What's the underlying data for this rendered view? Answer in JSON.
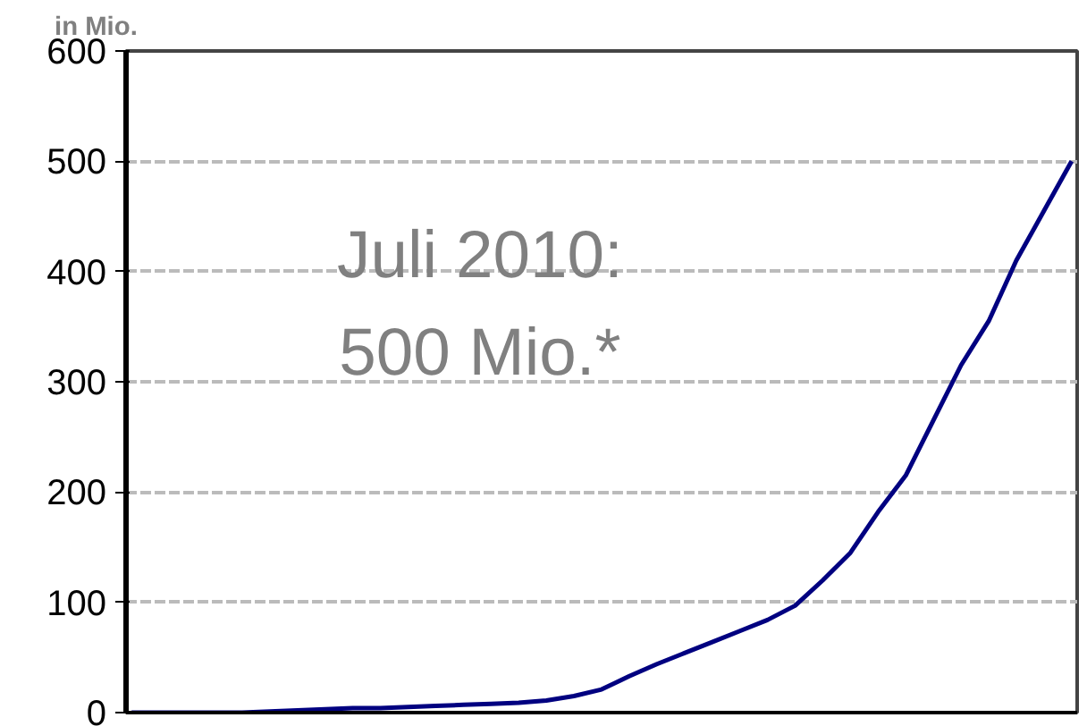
{
  "chart_data": {
    "type": "line",
    "ylabel": "in Mio.",
    "categories": [
      null,
      null,
      null,
      null,
      null,
      null,
      null,
      null,
      null,
      null,
      null,
      null,
      null,
      null,
      null,
      null,
      null,
      null,
      null,
      null,
      null,
      null,
      null,
      null,
      null,
      null,
      null,
      null,
      null,
      null,
      null,
      null,
      null,
      null,
      null
    ],
    "series": [
      {
        "color": "#000080",
        "values": [
          0,
          0,
          0,
          0,
          0,
          1,
          2,
          3,
          4,
          4,
          5,
          6,
          7,
          8,
          9,
          11,
          15,
          21,
          33,
          44,
          54,
          64,
          74,
          84,
          97,
          120,
          145,
          182,
          215,
          265,
          315,
          355,
          410,
          455,
          500
        ]
      }
    ],
    "ylim": [
      0,
      600
    ],
    "yticks": [
      0,
      100,
      200,
      300,
      400,
      500,
      600
    ],
    "grid": "y",
    "marker": "none",
    "line_style": "solid",
    "annotations": [
      "Juli 2010:\n500 Mio.*"
    ]
  }
}
